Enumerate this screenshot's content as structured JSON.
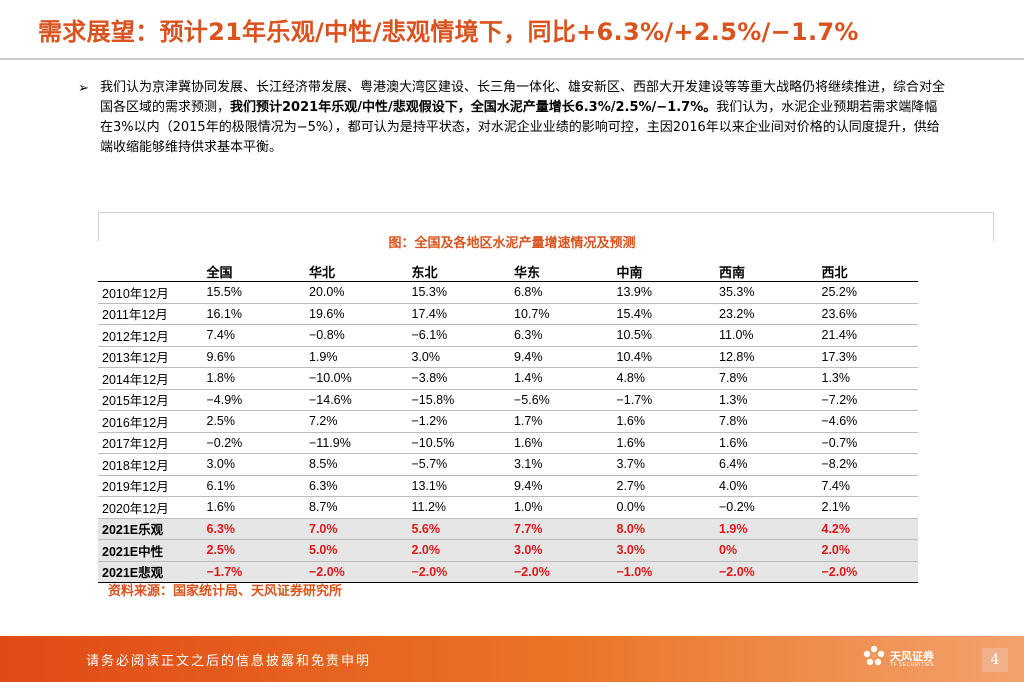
{
  "title": "需求展望：预计21年乐观/中性/悲观情境下，同比+6.3%/+2.5%/−1.7%",
  "bullet_marker": "➢",
  "paragraph": {
    "part1": "我们认为京津冀协同发展、长江经济带发展、粤港澳大湾区建设、长三角一体化、雄安新区、西部大开发建设等等重大战略仍将继续推进，综合对全国各区域的需求预测，",
    "bold": "我们预计2021年乐观/中性/悲观假设下，全国水泥产量增长6.3%/2.5%/−1.7%。",
    "part2": "我们认为，水泥企业预期若需求端降幅在3%以内（2015年的极限情况为−5%），都可认为是持平状态，对水泥企业业绩的影响可控，主因2016年以来企业间对价格的认同度提升，供给端收缩能够维持供求基本平衡。"
  },
  "figure_title": "图：全国及各地区水泥产量增速情况及预测",
  "table": {
    "headers": [
      "",
      "全国",
      "华北",
      "东北",
      "华东",
      "中南",
      "西南",
      "西北"
    ],
    "rows": [
      [
        "2010年12月",
        "15.5%",
        "20.0%",
        "15.3%",
        "6.8%",
        "13.9%",
        "35.3%",
        "25.2%"
      ],
      [
        "2011年12月",
        "16.1%",
        "19.6%",
        "17.4%",
        "10.7%",
        "15.4%",
        "23.2%",
        "23.6%"
      ],
      [
        "2012年12月",
        "7.4%",
        "−0.8%",
        "−6.1%",
        "6.3%",
        "10.5%",
        "11.0%",
        "21.4%"
      ],
      [
        "2013年12月",
        "9.6%",
        "1.9%",
        "3.0%",
        "9.4%",
        "10.4%",
        "12.8%",
        "17.3%"
      ],
      [
        "2014年12月",
        "1.8%",
        "−10.0%",
        "−3.8%",
        "1.4%",
        "4.8%",
        "7.8%",
        "1.3%"
      ],
      [
        "2015年12月",
        "−4.9%",
        "−14.6%",
        "−15.8%",
        "−5.6%",
        "−1.7%",
        "1.3%",
        "−7.2%"
      ],
      [
        "2016年12月",
        "2.5%",
        "7.2%",
        "−1.2%",
        "1.7%",
        "1.6%",
        "7.8%",
        "−4.6%"
      ],
      [
        "2017年12月",
        "−0.2%",
        "−11.9%",
        "−10.5%",
        "1.6%",
        "1.6%",
        "1.6%",
        "−0.7%"
      ],
      [
        "2018年12月",
        "3.0%",
        "8.5%",
        "−5.7%",
        "3.1%",
        "3.7%",
        "6.4%",
        "−8.2%"
      ],
      [
        "2019年12月",
        "6.1%",
        "6.3%",
        "13.1%",
        "9.4%",
        "2.7%",
        "4.0%",
        "7.4%"
      ],
      [
        "2020年12月",
        "1.6%",
        "8.7%",
        "11.2%",
        "1.0%",
        "0.0%",
        "−0.2%",
        "2.1%"
      ]
    ],
    "scenario_rows": [
      [
        "2021E乐观",
        "6.3%",
        "7.0%",
        "5.6%",
        "7.7%",
        "8.0%",
        "1.9%",
        "4.2%"
      ],
      [
        "2021E中性",
        "2.5%",
        "5.0%",
        "2.0%",
        "3.0%",
        "3.0%",
        "0%",
        "2.0%"
      ],
      [
        "2021E悲观",
        "−1.7%",
        "−2.0%",
        "−2.0%",
        "−2.0%",
        "−1.0%",
        "−2.0%",
        "−2.0%"
      ]
    ]
  },
  "source": "资料来源：国家统计局、天风证券研究所",
  "footer": {
    "disclaimer": "请务必阅读正文之后的信息披露和免责申明",
    "logo_cn": "天风证券",
    "logo_en": "TF SECURITIES",
    "page": "4"
  },
  "colors": {
    "accent": "#d9531e",
    "scenario_text": "#e01818",
    "scenario_bg": "#e6e6e6"
  }
}
